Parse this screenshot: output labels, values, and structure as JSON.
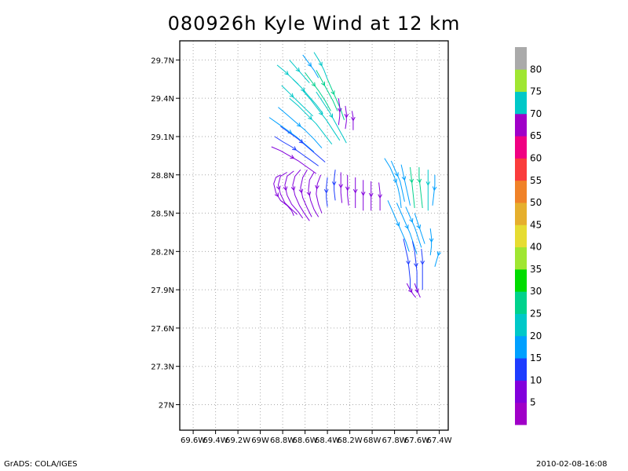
{
  "chart_data": {
    "type": "streamline",
    "title": "080926h Kyle Wind at 12 km",
    "x_ticks": [
      "69.6W",
      "69.4W",
      "69.2W",
      "69W",
      "68.8W",
      "68.6W",
      "68.4W",
      "68.2W",
      "68W",
      "67.8W",
      "67.6W",
      "67.4W"
    ],
    "y_ticks": [
      "29.7N",
      "29.4N",
      "29.1N",
      "28.8N",
      "28.5N",
      "28.2N",
      "27.9N",
      "27.6N",
      "27.3N",
      "27N"
    ],
    "xlim_lon_west": [
      69.72,
      67.32
    ],
    "ylim_lat": [
      26.8,
      29.85
    ],
    "grid": true,
    "colorbar": {
      "labels": [
        "5",
        "10",
        "15",
        "20",
        "25",
        "30",
        "35",
        "40",
        "45",
        "50",
        "55",
        "60",
        "65",
        "70",
        "75",
        "80"
      ],
      "colors": [
        "#a000c8",
        "#8200dc",
        "#1e3cff",
        "#00a0ff",
        "#00c8c8",
        "#00d28c",
        "#00dc00",
        "#a0e632",
        "#e6dc32",
        "#e6af2d",
        "#f08228",
        "#fa3c3c",
        "#f00082",
        "#a000c8",
        "#00c8c8",
        "#a0e632",
        "#aaaaaa"
      ]
    },
    "streamlines": [
      {
        "lon": [
          -68.85,
          -68.78,
          -68.72,
          -68.66
        ],
        "lat": [
          29.66,
          29.61,
          29.56,
          29.51
        ],
        "speed": 20
      },
      {
        "lon": [
          -68.74,
          -68.68,
          -68.62,
          -68.56
        ],
        "lat": [
          29.7,
          29.64,
          29.58,
          29.52
        ],
        "speed": 20
      },
      {
        "lon": [
          -68.62,
          -68.57,
          -68.52,
          -68.48
        ],
        "lat": [
          29.74,
          29.68,
          29.62,
          29.56
        ],
        "speed": 18
      },
      {
        "lon": [
          -68.52,
          -68.47,
          -68.43,
          -68.4
        ],
        "lat": [
          29.76,
          29.69,
          29.62,
          29.55
        ],
        "speed": 22
      },
      {
        "lon": [
          -68.81,
          -68.74,
          -68.67,
          -68.6,
          -68.53
        ],
        "lat": [
          29.5,
          29.44,
          29.38,
          29.32,
          29.26
        ],
        "speed": 20
      },
      {
        "lon": [
          -68.71,
          -68.64,
          -68.57,
          -68.5,
          -68.44
        ],
        "lat": [
          29.55,
          29.49,
          29.42,
          29.35,
          29.28
        ],
        "speed": 22
      },
      {
        "lon": [
          -68.6,
          -68.54,
          -68.48,
          -68.42,
          -68.37
        ],
        "lat": [
          29.6,
          29.53,
          29.46,
          29.38,
          29.3
        ],
        "speed": 25
      },
      {
        "lon": [
          -68.5,
          -68.45,
          -68.4,
          -68.35,
          -68.31
        ],
        "lat": [
          29.62,
          29.54,
          29.46,
          29.38,
          29.3
        ],
        "speed": 25
      },
      {
        "lon": [
          -68.4,
          -68.36,
          -68.32,
          -68.28,
          -68.25
        ],
        "lat": [
          29.55,
          29.47,
          29.39,
          29.31,
          29.23
        ],
        "speed": 25
      },
      {
        "lon": [
          -68.92,
          -68.84,
          -68.76,
          -68.68,
          -68.6,
          -68.52
        ],
        "lat": [
          29.25,
          29.2,
          29.15,
          29.1,
          29.04,
          28.98
        ],
        "speed": 15
      },
      {
        "lon": [
          -68.84,
          -68.76,
          -68.68,
          -68.6,
          -68.52,
          -68.45
        ],
        "lat": [
          29.33,
          29.27,
          29.21,
          29.15,
          29.08,
          29.01
        ],
        "speed": 18
      },
      {
        "lon": [
          -68.74,
          -68.66,
          -68.58,
          -68.5,
          -68.43,
          -68.36
        ],
        "lat": [
          29.4,
          29.34,
          29.27,
          29.2,
          29.12,
          29.04
        ],
        "speed": 20
      },
      {
        "lon": [
          -68.62,
          -68.55,
          -68.48,
          -68.41,
          -68.35,
          -68.29
        ],
        "lat": [
          29.46,
          29.39,
          29.31,
          29.23,
          29.15,
          29.07
        ],
        "speed": 22
      },
      {
        "lon": [
          -68.5,
          -68.44,
          -68.38,
          -68.33,
          -68.28,
          -68.23
        ],
        "lat": [
          29.45,
          29.37,
          29.29,
          29.21,
          29.13,
          29.05
        ],
        "speed": 20
      },
      {
        "lon": [
          -68.87,
          -68.8,
          -68.72,
          -68.64,
          -68.56,
          -68.48
        ],
        "lat": [
          29.1,
          29.06,
          29.02,
          28.97,
          28.92,
          28.87
        ],
        "speed": 10
      },
      {
        "lon": [
          -68.82,
          -68.74,
          -68.66,
          -68.58,
          -68.5,
          -68.42
        ],
        "lat": [
          29.18,
          29.13,
          29.08,
          29.02,
          28.96,
          28.9
        ],
        "speed": 12
      },
      {
        "lon": [
          -68.9,
          -68.82,
          -68.74,
          -68.66,
          -68.58,
          -68.5
        ],
        "lat": [
          29.02,
          28.99,
          28.95,
          28.91,
          28.86,
          28.81
        ],
        "speed": 8
      },
      {
        "lon": [
          -68.82,
          -68.86,
          -68.88,
          -68.86,
          -68.82,
          -68.76,
          -68.72,
          -68.7
        ],
        "lat": [
          28.8,
          28.78,
          28.73,
          28.66,
          28.6,
          28.56,
          28.52,
          28.48
        ],
        "speed": 6
      },
      {
        "lon": [
          -68.76,
          -68.82,
          -68.84,
          -68.82,
          -68.78,
          -68.72,
          -68.67
        ],
        "lat": [
          28.82,
          28.79,
          28.72,
          28.65,
          28.58,
          28.53,
          28.49
        ],
        "speed": 6
      },
      {
        "lon": [
          -68.7,
          -68.76,
          -68.78,
          -68.76,
          -68.72,
          -68.66,
          -68.62
        ],
        "lat": [
          28.83,
          28.79,
          28.72,
          28.64,
          28.57,
          28.51,
          28.46
        ],
        "speed": 7
      },
      {
        "lon": [
          -68.64,
          -68.69,
          -68.71,
          -68.69,
          -68.65,
          -68.6,
          -68.56
        ],
        "lat": [
          28.84,
          28.79,
          28.72,
          28.64,
          28.56,
          28.49,
          28.44
        ],
        "speed": 7
      },
      {
        "lon": [
          -68.58,
          -68.62,
          -68.64,
          -68.62,
          -68.58,
          -68.54
        ],
        "lat": [
          28.84,
          28.78,
          28.7,
          28.62,
          28.54,
          28.47
        ],
        "speed": 8
      },
      {
        "lon": [
          -68.52,
          -68.56,
          -68.57,
          -68.55,
          -68.52,
          -68.48
        ],
        "lat": [
          28.82,
          28.76,
          28.68,
          28.6,
          28.53,
          28.47
        ],
        "speed": 8
      },
      {
        "lon": [
          -68.46,
          -68.49,
          -68.5,
          -68.48,
          -68.45
        ],
        "lat": [
          28.8,
          28.73,
          28.65,
          28.57,
          28.5
        ],
        "speed": 9
      },
      {
        "lon": [
          -68.4,
          -68.41,
          -68.41,
          -68.4
        ],
        "lat": [
          28.78,
          28.7,
          28.62,
          28.55
        ],
        "speed": 12
      },
      {
        "lon": [
          -68.33,
          -68.34,
          -68.34,
          -68.33
        ],
        "lat": [
          28.84,
          28.76,
          28.68,
          28.6
        ],
        "speed": 14
      },
      {
        "lon": [
          -68.28,
          -68.28,
          -68.28,
          -68.27
        ],
        "lat": [
          28.82,
          28.74,
          28.66,
          28.58
        ],
        "speed": 9
      },
      {
        "lon": [
          -68.22,
          -68.22,
          -68.22,
          -68.21
        ],
        "lat": [
          28.8,
          28.72,
          28.64,
          28.56
        ],
        "speed": 8
      },
      {
        "lon": [
          -68.15,
          -68.15,
          -68.15,
          -68.15
        ],
        "lat": [
          28.78,
          28.7,
          28.62,
          28.54
        ],
        "speed": 8
      },
      {
        "lon": [
          -68.08,
          -68.08,
          -68.08,
          -68.08
        ],
        "lat": [
          28.76,
          28.68,
          28.6,
          28.52
        ],
        "speed": 8
      },
      {
        "lon": [
          -68.01,
          -68.01,
          -68.01,
          -68.01
        ],
        "lat": [
          28.75,
          28.67,
          28.59,
          28.52
        ],
        "speed": 7
      },
      {
        "lon": [
          -67.94,
          -67.93,
          -67.93,
          -67.93
        ],
        "lat": [
          28.74,
          28.66,
          28.58,
          28.52
        ],
        "speed": 7
      },
      {
        "lon": [
          -68.3,
          -68.29,
          -68.29,
          -68.3
        ],
        "lat": [
          29.4,
          29.33,
          29.26,
          29.19
        ],
        "speed": 8
      },
      {
        "lon": [
          -68.24,
          -68.23,
          -68.23,
          -68.24
        ],
        "lat": [
          29.34,
          29.28,
          29.22,
          29.16
        ],
        "speed": 8
      },
      {
        "lon": [
          -68.18,
          -68.17,
          -68.17,
          -68.17
        ],
        "lat": [
          29.3,
          29.25,
          29.2,
          29.15
        ],
        "speed": 7
      },
      {
        "lon": [
          -67.89,
          -67.84,
          -67.8,
          -67.77,
          -67.75,
          -67.74
        ],
        "lat": [
          28.93,
          28.86,
          28.78,
          28.7,
          28.62,
          28.54
        ],
        "speed": 15
      },
      {
        "lon": [
          -67.83,
          -67.79,
          -67.75,
          -67.73,
          -67.71
        ],
        "lat": [
          28.91,
          28.83,
          28.75,
          28.67,
          28.59
        ],
        "speed": 15
      },
      {
        "lon": [
          -67.74,
          -67.72,
          -67.7,
          -67.68,
          -67.66
        ],
        "lat": [
          28.88,
          28.8,
          28.72,
          28.64,
          28.56
        ],
        "speed": 18
      },
      {
        "lon": [
          -67.66,
          -67.65,
          -67.64,
          -67.63,
          -67.62
        ],
        "lat": [
          28.86,
          28.78,
          28.7,
          28.62,
          28.54
        ],
        "speed": 25
      },
      {
        "lon": [
          -67.58,
          -67.58,
          -67.57,
          -67.56,
          -67.55
        ],
        "lat": [
          28.86,
          28.78,
          28.7,
          28.62,
          28.54
        ],
        "speed": 25
      },
      {
        "lon": [
          -67.5,
          -67.5,
          -67.5,
          -67.5,
          -67.5
        ],
        "lat": [
          28.84,
          28.76,
          28.68,
          28.6,
          28.52
        ],
        "speed": 22
      },
      {
        "lon": [
          -67.44,
          -67.44,
          -67.45,
          -67.46
        ],
        "lat": [
          28.8,
          28.72,
          28.64,
          28.56
        ],
        "speed": 18
      },
      {
        "lon": [
          -67.86,
          -67.82,
          -67.78,
          -67.74,
          -67.7,
          -67.67
        ],
        "lat": [
          28.6,
          28.52,
          28.44,
          28.36,
          28.28,
          28.2
        ],
        "speed": 15
      },
      {
        "lon": [
          -67.78,
          -67.74,
          -67.7,
          -67.66,
          -67.63,
          -67.6
        ],
        "lat": [
          28.58,
          28.5,
          28.42,
          28.34,
          28.26,
          28.18
        ],
        "speed": 15
      },
      {
        "lon": [
          -67.7,
          -67.66,
          -67.62,
          -67.59,
          -67.56
        ],
        "lat": [
          28.55,
          28.47,
          28.39,
          28.31,
          28.23
        ],
        "speed": 15
      },
      {
        "lon": [
          -67.62,
          -67.59,
          -67.56,
          -67.53
        ],
        "lat": [
          28.5,
          28.42,
          28.34,
          28.26
        ],
        "speed": 15
      },
      {
        "lon": [
          -67.48,
          -67.47,
          -67.47,
          -67.48
        ],
        "lat": [
          28.38,
          28.31,
          28.24,
          28.17
        ],
        "speed": 15
      },
      {
        "lon": [
          -67.4,
          -67.42,
          -67.44
        ],
        "lat": [
          28.2,
          28.14,
          28.08
        ],
        "speed": 15
      },
      {
        "lon": [
          -67.72,
          -67.7,
          -67.68,
          -67.67,
          -67.66,
          -67.66
        ],
        "lat": [
          28.3,
          28.22,
          28.14,
          28.06,
          27.98,
          27.9
        ],
        "speed": 14
      },
      {
        "lon": [
          -67.64,
          -67.62,
          -67.61,
          -67.6,
          -67.6,
          -67.6
        ],
        "lat": [
          28.28,
          28.2,
          28.12,
          28.04,
          27.96,
          27.88
        ],
        "speed": 14
      },
      {
        "lon": [
          -67.56,
          -67.55,
          -67.55,
          -67.55,
          -67.55
        ],
        "lat": [
          28.22,
          28.14,
          28.06,
          27.98,
          27.9
        ],
        "speed": 14
      },
      {
        "lon": [
          -67.69,
          -67.66,
          -67.63,
          -67.61
        ],
        "lat": [
          27.95,
          27.9,
          27.86,
          27.84
        ],
        "speed": 8
      },
      {
        "lon": [
          -67.62,
          -67.6,
          -67.58,
          -67.57
        ],
        "lat": [
          27.95,
          27.9,
          27.86,
          27.84
        ],
        "speed": 8
      }
    ]
  },
  "footer": {
    "left": "GrADS: COLA/IGES",
    "right": "2010-02-08-16:08"
  }
}
